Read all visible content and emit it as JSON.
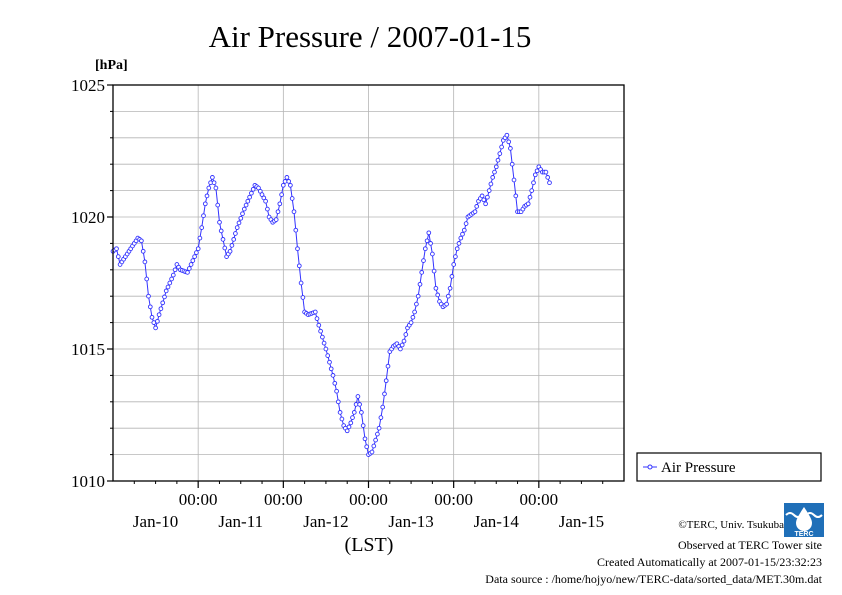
{
  "chart_data": {
    "type": "line",
    "title": "Air Pressure / 2007-01-15",
    "unit_label": "[hPa]",
    "xlabel": "(LST)",
    "ylim": [
      1010,
      1025
    ],
    "y_ticks": [
      "1010",
      "1015",
      "1020",
      "1025"
    ],
    "x_tick_time": "00:00",
    "x_tick_dates": [
      "Jan-10",
      "Jan-11",
      "Jan-12",
      "Jan-13",
      "Jan-14",
      "Jan-15"
    ],
    "x_tick_hours": [
      24,
      48,
      72,
      96,
      120
    ],
    "x_date_label_hours": [
      12,
      36,
      60,
      84,
      108,
      132
    ],
    "xlim_hours": [
      0,
      144
    ],
    "grid": true,
    "legend_position": "right, below plot",
    "series": [
      {
        "name": "Air Pressure",
        "color": "#3333ff",
        "marker": "open-circle",
        "keypoints": [
          [
            0,
            1018.7
          ],
          [
            1,
            1018.8
          ],
          [
            2,
            1018.2
          ],
          [
            3,
            1018.4
          ],
          [
            5,
            1018.8
          ],
          [
            7,
            1019.2
          ],
          [
            8,
            1019.1
          ],
          [
            9,
            1018.3
          ],
          [
            10,
            1017.0
          ],
          [
            11,
            1016.2
          ],
          [
            12,
            1015.8
          ],
          [
            13,
            1016.3
          ],
          [
            15,
            1017.2
          ],
          [
            17,
            1017.8
          ],
          [
            18,
            1018.2
          ],
          [
            19,
            1018.0
          ],
          [
            21,
            1017.9
          ],
          [
            22,
            1018.2
          ],
          [
            24,
            1018.8
          ],
          [
            25,
            1019.6
          ],
          [
            26,
            1020.5
          ],
          [
            27,
            1021.1
          ],
          [
            28,
            1021.5
          ],
          [
            29,
            1021.1
          ],
          [
            30,
            1019.8
          ],
          [
            32,
            1018.5
          ],
          [
            33,
            1018.7
          ],
          [
            35,
            1019.6
          ],
          [
            37,
            1020.3
          ],
          [
            39,
            1020.9
          ],
          [
            40,
            1021.2
          ],
          [
            41,
            1021.1
          ],
          [
            43,
            1020.6
          ],
          [
            44,
            1020.0
          ],
          [
            45,
            1019.8
          ],
          [
            46,
            1019.9
          ],
          [
            47,
            1020.5
          ],
          [
            48,
            1021.2
          ],
          [
            49,
            1021.5
          ],
          [
            50,
            1021.2
          ],
          [
            51,
            1020.2
          ],
          [
            52,
            1018.8
          ],
          [
            53,
            1017.5
          ],
          [
            54,
            1016.4
          ],
          [
            55,
            1016.3
          ],
          [
            57,
            1016.4
          ],
          [
            58,
            1015.9
          ],
          [
            60,
            1015.0
          ],
          [
            62,
            1014.0
          ],
          [
            63,
            1013.4
          ],
          [
            64,
            1012.6
          ],
          [
            65,
            1012.1
          ],
          [
            66,
            1011.9
          ],
          [
            67,
            1012.2
          ],
          [
            68,
            1012.6
          ],
          [
            69,
            1013.2
          ],
          [
            70,
            1012.6
          ],
          [
            71,
            1011.6
          ],
          [
            72,
            1011.0
          ],
          [
            73,
            1011.1
          ],
          [
            75,
            1012.0
          ],
          [
            76,
            1012.8
          ],
          [
            77,
            1013.8
          ],
          [
            78,
            1014.9
          ],
          [
            79,
            1015.1
          ],
          [
            80,
            1015.2
          ],
          [
            81,
            1015.0
          ],
          [
            82,
            1015.3
          ],
          [
            83,
            1015.8
          ],
          [
            84,
            1016.0
          ],
          [
            85,
            1016.4
          ],
          [
            86,
            1017.0
          ],
          [
            87,
            1017.9
          ],
          [
            88,
            1018.8
          ],
          [
            89,
            1019.4
          ],
          [
            90,
            1018.6
          ],
          [
            91,
            1017.3
          ],
          [
            92,
            1016.8
          ],
          [
            93,
            1016.6
          ],
          [
            94,
            1016.7
          ],
          [
            95,
            1017.3
          ],
          [
            96,
            1018.2
          ],
          [
            97,
            1018.8
          ],
          [
            98,
            1019.2
          ],
          [
            99,
            1019.5
          ],
          [
            100,
            1020.0
          ],
          [
            101,
            1020.1
          ],
          [
            102,
            1020.2
          ],
          [
            103,
            1020.6
          ],
          [
            104,
            1020.8
          ],
          [
            105,
            1020.5
          ],
          [
            106,
            1021.0
          ],
          [
            107,
            1021.5
          ],
          [
            108,
            1021.9
          ],
          [
            109,
            1022.4
          ],
          [
            110,
            1022.9
          ],
          [
            111,
            1023.1
          ],
          [
            112,
            1022.6
          ],
          [
            113,
            1021.4
          ],
          [
            114,
            1020.2
          ],
          [
            115,
            1020.2
          ],
          [
            116,
            1020.4
          ],
          [
            117,
            1020.5
          ],
          [
            118,
            1021.0
          ],
          [
            119,
            1021.6
          ],
          [
            120,
            1021.9
          ],
          [
            121,
            1021.7
          ],
          [
            122,
            1021.7
          ],
          [
            123,
            1021.3
          ]
        ]
      }
    ]
  },
  "credits": {
    "copyright": "©TERC, Univ. Tsukuba",
    "observed": "Observed at TERC Tower site",
    "created": "Created Automatically at 2007-01-15/23:32:23",
    "source": "Data source : /home/hojyo/new/TERC-data/sorted_data/MET.30m.dat",
    "logo_text": "TERC"
  }
}
